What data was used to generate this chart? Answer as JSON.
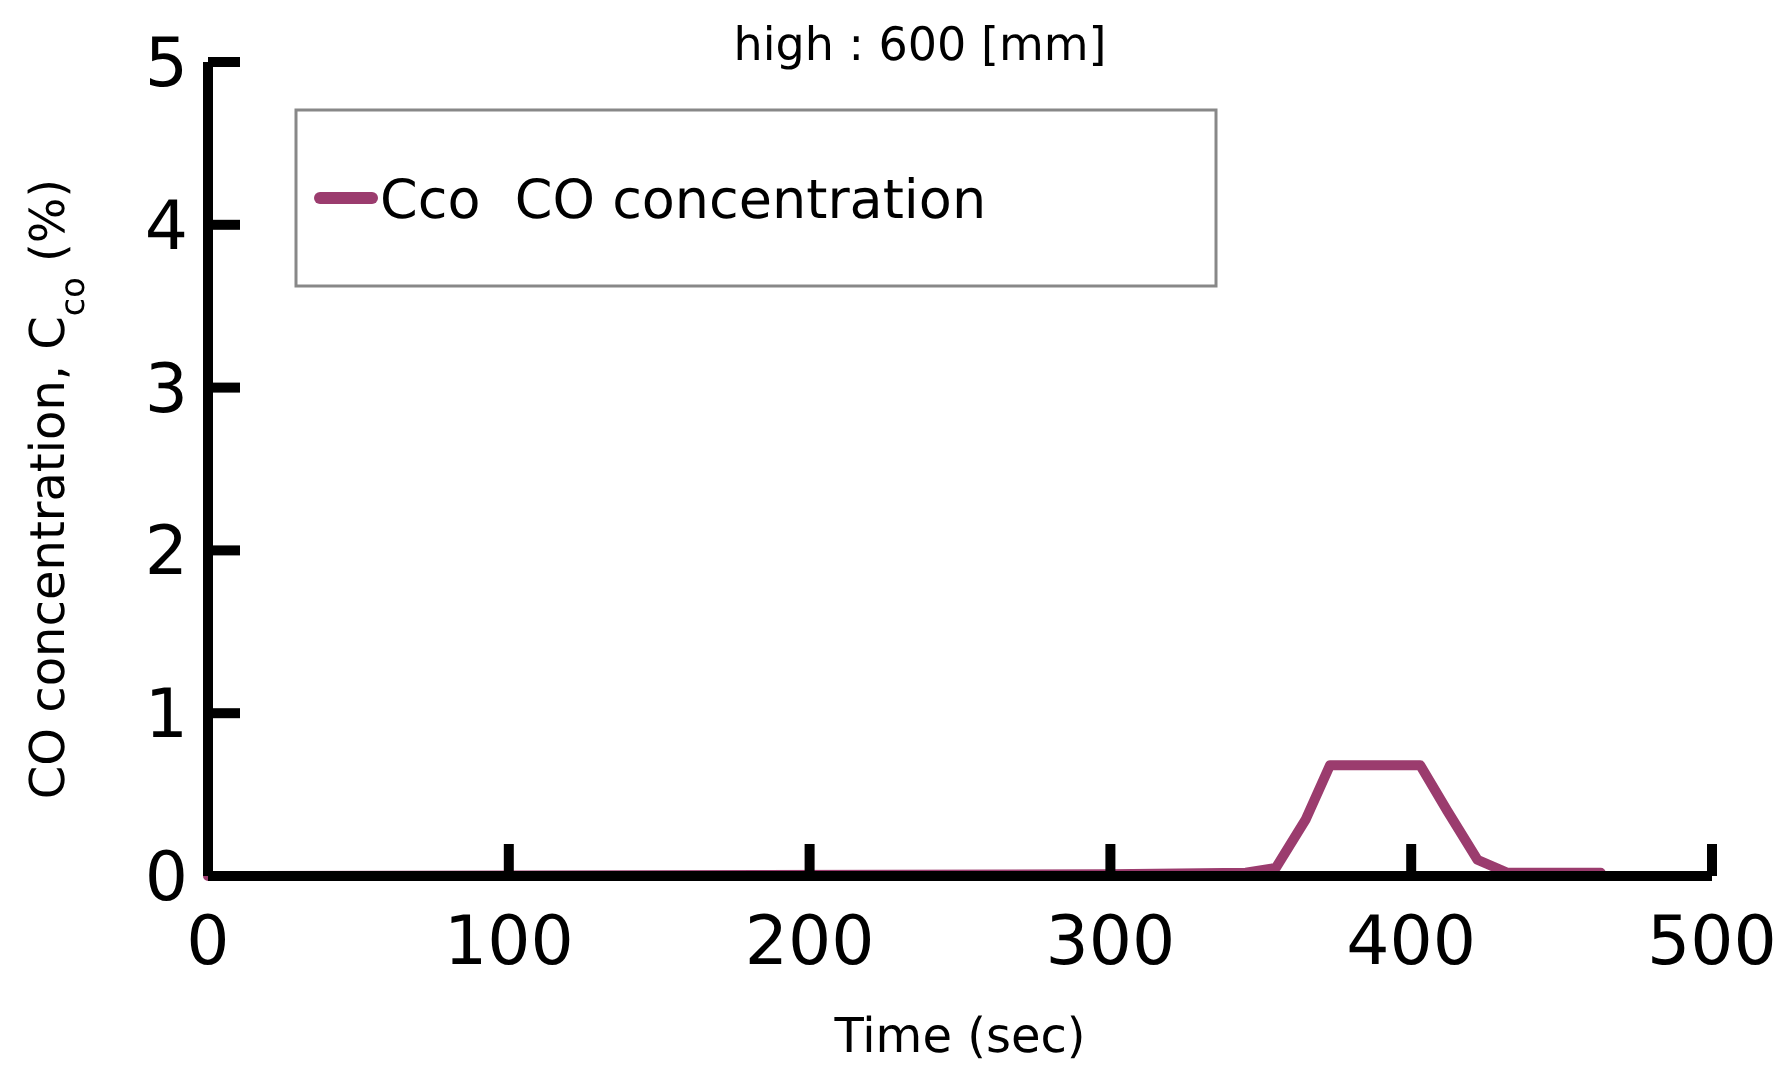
{
  "chart_data": {
    "type": "line",
    "title": "high : 600 [mm]",
    "xlabel": "Time (sec)",
    "ylabel": "CO concentration, C$_{co}$ (%)",
    "xlim": [
      0,
      500
    ],
    "xticks": [
      0,
      100,
      200,
      300,
      400,
      500
    ],
    "ylim": [
      0,
      5
    ],
    "yticks": [
      0,
      1,
      2,
      3,
      4,
      5
    ],
    "grid": false,
    "legend": "top",
    "line_style": "solid",
    "series": [
      {
        "name": "Cco  CO concentration",
        "color": "#9b3c6e",
        "x": [
          0,
          300,
          345,
          355,
          365,
          373,
          403,
          412,
          422,
          432,
          463
        ],
        "values": [
          0,
          0.01,
          0.02,
          0.05,
          0.35,
          0.68,
          0.68,
          0.4,
          0.1,
          0.02,
          0.02
        ]
      }
    ]
  }
}
